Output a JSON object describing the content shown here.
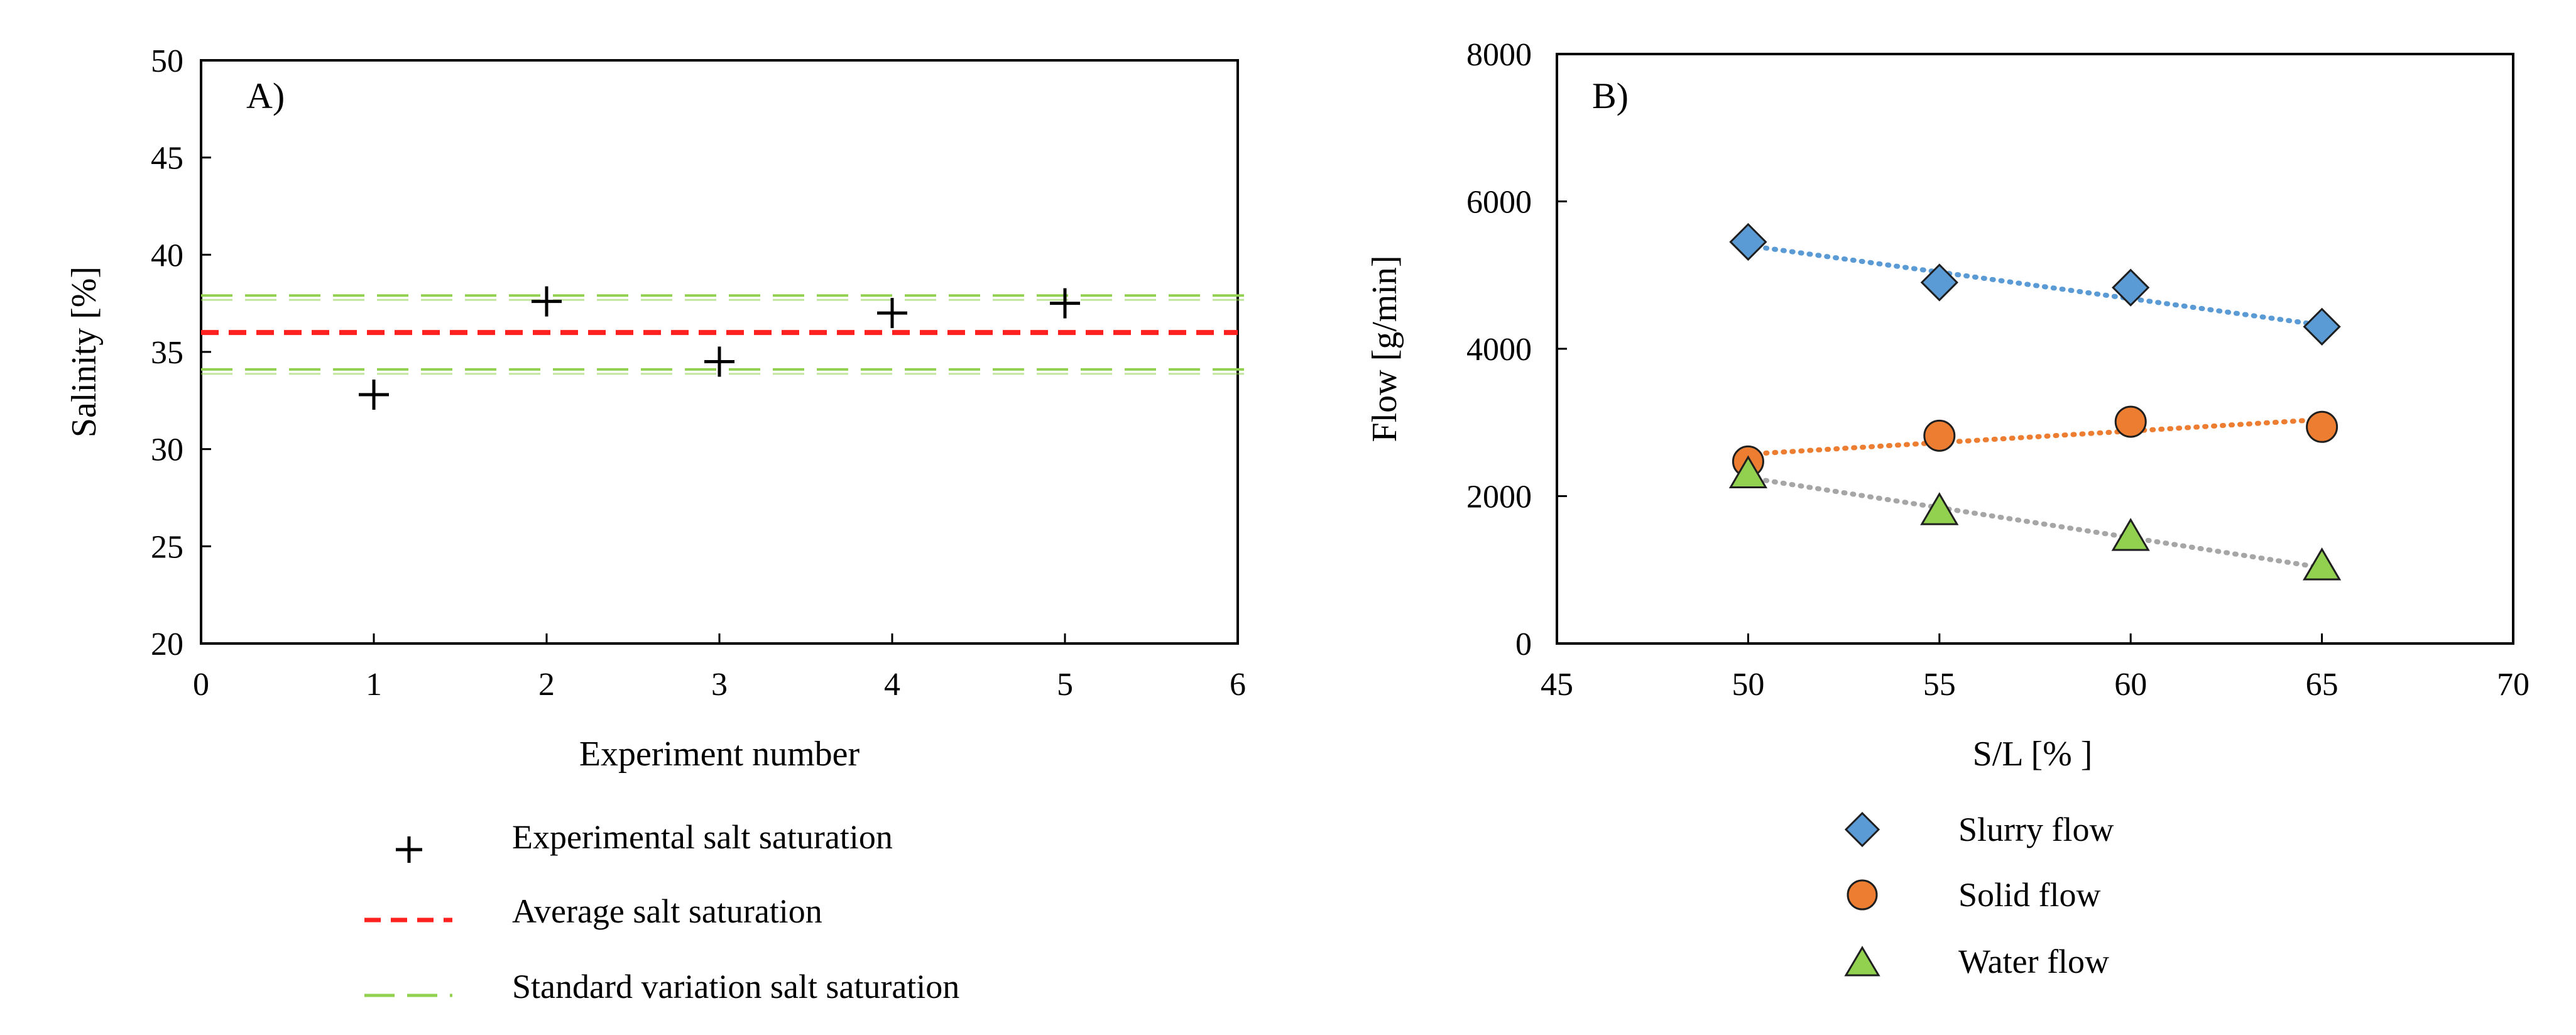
{
  "chart_data": [
    {
      "type": "scatter",
      "panel_label": "A)",
      "xlabel": "Experiment number",
      "ylabel": "Salinity [%]",
      "xlim": [
        0,
        6
      ],
      "ylim": [
        20,
        50
      ],
      "xticks": [
        "0",
        "1",
        "2",
        "3",
        "4",
        "5",
        "6"
      ],
      "yticks": [
        "20",
        "25",
        "30",
        "35",
        "40",
        "45",
        "50"
      ],
      "grid": false,
      "legend_position": "below",
      "series": [
        {
          "name": "Experimental salt saturation",
          "marker": "plus",
          "color": "#000000",
          "x": [
            1,
            2,
            3,
            4,
            5
          ],
          "y": [
            32.8,
            37.6,
            34.5,
            37.0,
            37.5
          ]
        }
      ],
      "hlines": [
        {
          "name": "Average salt saturation",
          "style": "short-dash",
          "color": "#ff2020",
          "y": 36.0
        },
        {
          "name": "Standard variation salt saturation",
          "style": "long-dash",
          "color": "#92d050",
          "y": [
            37.9,
            34.1
          ]
        }
      ],
      "legend": [
        "Experimental salt saturation",
        "Average salt saturation",
        "Standard variation salt saturation"
      ]
    },
    {
      "type": "scatter",
      "panel_label": "B)",
      "xlabel": "S/L [% ]",
      "ylabel": "Flow [g/min]",
      "xlim": [
        45,
        70
      ],
      "ylim": [
        0,
        8000
      ],
      "xticks": [
        "45",
        "50",
        "55",
        "60",
        "65",
        "70"
      ],
      "yticks": [
        "0",
        "2000",
        "4000",
        "6000",
        "8000"
      ],
      "grid": false,
      "legend_position": "below",
      "x": [
        50,
        55,
        60,
        65
      ],
      "series": [
        {
          "name": "Slurry flow",
          "marker": "diamond",
          "color": "#5b9bd5",
          "trend_color": "#5b9bd5",
          "values": [
            5450,
            4900,
            4830,
            4300
          ],
          "trend": [
            5400,
            5040,
            4680,
            4320
          ]
        },
        {
          "name": "Solid flow",
          "marker": "circle",
          "color": "#ed7d31",
          "trend_color": "#ed7d31",
          "values": [
            2470,
            2820,
            3010,
            2940
          ],
          "trend": [
            2570,
            2720,
            2880,
            3040
          ]
        },
        {
          "name": "Water flow",
          "marker": "triangle",
          "color": "#92d050",
          "trend_color": "#a6a6a6",
          "values": [
            2290,
            1790,
            1440,
            1040
          ],
          "trend": [
            2250,
            1840,
            1440,
            1030
          ]
        }
      ],
      "legend": [
        "Slurry flow",
        "Solid flow",
        "Water flow"
      ]
    }
  ]
}
